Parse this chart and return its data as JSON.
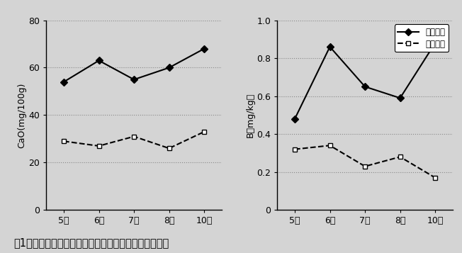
{
  "months": [
    "5月",
    "6月",
    "7月",
    "8月",
    "10月"
  ],
  "cao_desulfurizer": [
    54,
    63,
    55,
    60,
    68
  ],
  "cao_control": [
    29,
    27,
    31,
    26,
    33
  ],
  "b_desulfurizer": [
    0.48,
    0.86,
    0.65,
    0.59,
    0.88
  ],
  "b_control": [
    0.32,
    0.34,
    0.23,
    0.28,
    0.17
  ],
  "cao_ylabel": "CaO(mg/100g)",
  "b_ylabel": "B（mg/kg）",
  "cao_ylim": [
    0,
    80
  ],
  "b_ylim": [
    0,
    1.0
  ],
  "cao_yticks": [
    0,
    20,
    40,
    60,
    80
  ],
  "b_yticks": [
    0,
    0.2,
    0.4,
    0.6,
    0.8,
    1.0
  ],
  "legend_desulfurizer": "脱硫剤区",
  "legend_control": "無処理区",
  "caption": "図1　土壌中の交換性カルシウム及び可給態ホウ素濃度",
  "bg_color": "#d4d4d4",
  "plot_bg_color": "#d4d4d4",
  "line_color": "#000000",
  "grid_color": "#888888"
}
